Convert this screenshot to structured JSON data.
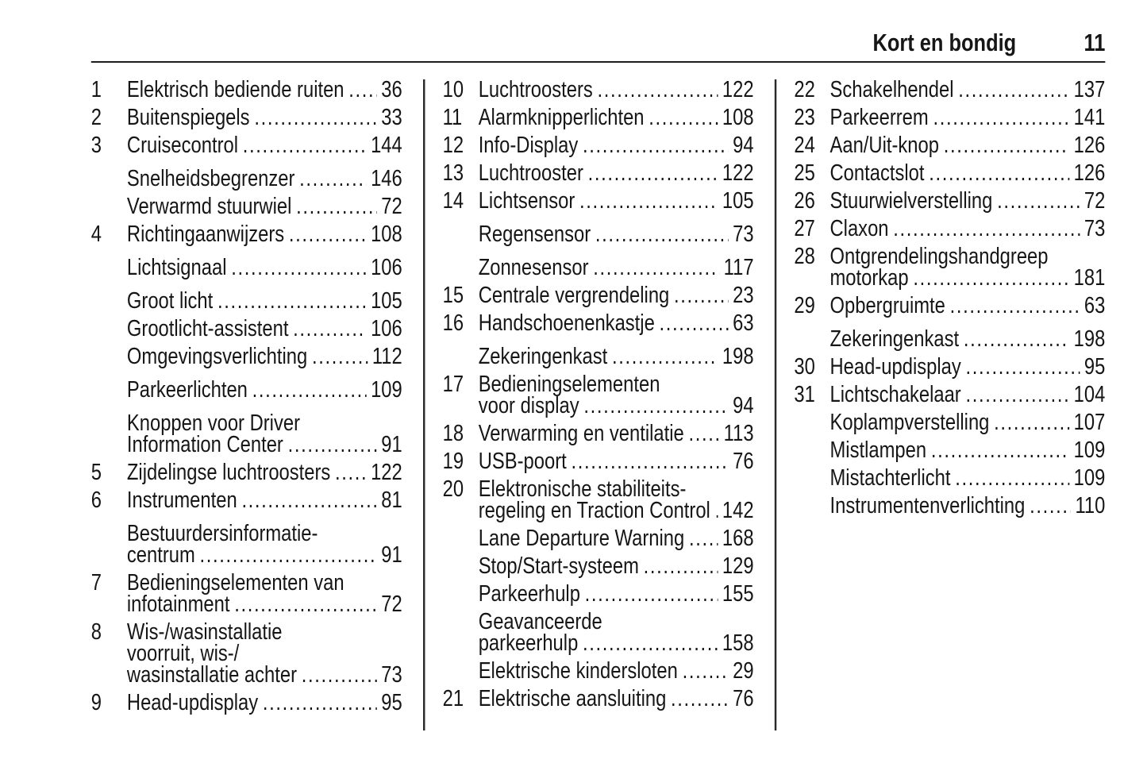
{
  "header": {
    "title": "Kort en bondig",
    "page_number": "11"
  },
  "style": {
    "ink": "#161616",
    "background": "#ffffff",
    "rule_color": "#1d1d1d",
    "divider_color": "#2a2a2a"
  },
  "meta": {
    "leader_char": "."
  },
  "columns": [
    {
      "entries": [
        {
          "num": "1",
          "lines": [
            "Elektrisch bediende ruiten"
          ],
          "page": "36",
          "gap": false
        },
        {
          "num": "2",
          "lines": [
            "Buitenspiegels"
          ],
          "page": "33",
          "gap": false
        },
        {
          "num": "3",
          "lines": [
            "Cruisecontrol"
          ],
          "page": "144",
          "gap": false
        },
        {
          "num": "",
          "lines": [
            "Snelheidsbegrenzer"
          ],
          "page": "146",
          "gap": true
        },
        {
          "num": "",
          "lines": [
            "Verwarmd stuurwiel"
          ],
          "page": "72",
          "gap": false
        },
        {
          "num": "4",
          "lines": [
            "Richtingaanwijzers"
          ],
          "page": "108",
          "gap": false
        },
        {
          "num": "",
          "lines": [
            "Lichtsignaal"
          ],
          "page": "106",
          "gap": true
        },
        {
          "num": "",
          "lines": [
            "Groot licht"
          ],
          "page": "105",
          "gap": true
        },
        {
          "num": "",
          "lines": [
            "Grootlicht-assistent"
          ],
          "page": "106",
          "gap": false
        },
        {
          "num": "",
          "lines": [
            "Omgevingsverlichting"
          ],
          "page": "112",
          "gap": false
        },
        {
          "num": "",
          "lines": [
            "Parkeerlichten"
          ],
          "page": "109",
          "gap": true
        },
        {
          "num": "",
          "lines": [
            "Knoppen voor Driver",
            "Information Center"
          ],
          "page": "91",
          "gap": true
        },
        {
          "num": "5",
          "lines": [
            "Zijdelingse luchtroosters"
          ],
          "page": "122",
          "gap": false
        },
        {
          "num": "6",
          "lines": [
            "Instrumenten"
          ],
          "page": "81",
          "gap": false
        },
        {
          "num": "",
          "lines": [
            "Bestuurdersinformatie-",
            "centrum"
          ],
          "page": "91",
          "gap": true
        },
        {
          "num": "7",
          "lines": [
            "Bedieningselementen van",
            "infotainment"
          ],
          "page": "72",
          "gap": false
        },
        {
          "num": "8",
          "lines": [
            "Wis-/wasinstallatie",
            "voorruit, wis-/",
            "wasinstallatie achter"
          ],
          "page": "73",
          "gap": false
        },
        {
          "num": "9",
          "lines": [
            "Head-updisplay"
          ],
          "page": "95",
          "gap": false
        }
      ]
    },
    {
      "entries": [
        {
          "num": "10",
          "lines": [
            "Luchtroosters"
          ],
          "page": "122",
          "gap": false
        },
        {
          "num": "11",
          "lines": [
            "Alarmknipperlichten"
          ],
          "page": "108",
          "gap": false
        },
        {
          "num": "12",
          "lines": [
            "Info-Display"
          ],
          "page": "94",
          "gap": false
        },
        {
          "num": "13",
          "lines": [
            "Luchtrooster"
          ],
          "page": "122",
          "gap": false
        },
        {
          "num": "14",
          "lines": [
            "Lichtsensor"
          ],
          "page": "105",
          "gap": false
        },
        {
          "num": "",
          "lines": [
            "Regensensor"
          ],
          "page": "73",
          "gap": true
        },
        {
          "num": "",
          "lines": [
            "Zonnesensor"
          ],
          "page": "117",
          "gap": true
        },
        {
          "num": "15",
          "lines": [
            "Centrale vergrendeling"
          ],
          "page": "23",
          "gap": false
        },
        {
          "num": "16",
          "lines": [
            "Handschoenenkastje"
          ],
          "page": "63",
          "gap": false
        },
        {
          "num": "",
          "lines": [
            "Zekeringenkast"
          ],
          "page": "198",
          "gap": true
        },
        {
          "num": "17",
          "lines": [
            "Bedieningselementen",
            "voor display"
          ],
          "page": "94",
          "gap": false
        },
        {
          "num": "18",
          "lines": [
            "Verwarming en ventilatie"
          ],
          "page": "113",
          "gap": false
        },
        {
          "num": "19",
          "lines": [
            "USB-poort"
          ],
          "page": "76",
          "gap": false
        },
        {
          "num": "20",
          "lines": [
            "Elektronische stabiliteits-",
            "regeling en Traction Control"
          ],
          "page": "142",
          "gap": false
        },
        {
          "num": "",
          "lines": [
            "Lane Departure Warning"
          ],
          "page": "168",
          "gap": false
        },
        {
          "num": "",
          "lines": [
            "Stop/Start-systeem"
          ],
          "page": "129",
          "gap": false
        },
        {
          "num": "",
          "lines": [
            "Parkeerhulp"
          ],
          "page": "155",
          "gap": false
        },
        {
          "num": "",
          "lines": [
            "Geavanceerde",
            "parkeerhulp"
          ],
          "page": "158",
          "gap": false
        },
        {
          "num": "",
          "lines": [
            "Elektrische kindersloten"
          ],
          "page": "29",
          "gap": false
        },
        {
          "num": "21",
          "lines": [
            "Elektrische aansluiting"
          ],
          "page": "76",
          "gap": false
        }
      ]
    },
    {
      "entries": [
        {
          "num": "22",
          "lines": [
            "Schakelhendel"
          ],
          "page": "137",
          "gap": false
        },
        {
          "num": "23",
          "lines": [
            "Parkeerrem"
          ],
          "page": "141",
          "gap": false
        },
        {
          "num": "24",
          "lines": [
            "Aan/Uit-knop"
          ],
          "page": "126",
          "gap": false
        },
        {
          "num": "25",
          "lines": [
            "Contactslot"
          ],
          "page": "126",
          "gap": false
        },
        {
          "num": "26",
          "lines": [
            "Stuurwielverstelling"
          ],
          "page": "72",
          "gap": false
        },
        {
          "num": "27",
          "lines": [
            "Claxon"
          ],
          "page": "73",
          "gap": false
        },
        {
          "num": "28",
          "lines": [
            "Ontgrendelingshandgreep",
            "motorkap"
          ],
          "page": "181",
          "gap": false
        },
        {
          "num": "29",
          "lines": [
            "Opbergruimte"
          ],
          "page": "63",
          "gap": false
        },
        {
          "num": "",
          "lines": [
            "Zekeringenkast"
          ],
          "page": "198",
          "gap": true
        },
        {
          "num": "30",
          "lines": [
            "Head-updisplay"
          ],
          "page": "95",
          "gap": false
        },
        {
          "num": "31",
          "lines": [
            "Lichtschakelaar"
          ],
          "page": "104",
          "gap": false
        },
        {
          "num": "",
          "lines": [
            "Koplampverstelling"
          ],
          "page": "107",
          "gap": false
        },
        {
          "num": "",
          "lines": [
            "Mistlampen"
          ],
          "page": "109",
          "gap": false
        },
        {
          "num": "",
          "lines": [
            "Mistachterlicht"
          ],
          "page": "109",
          "gap": false
        },
        {
          "num": "",
          "lines": [
            "Instrumentenverlichting"
          ],
          "page": "110",
          "gap": false
        }
      ]
    }
  ]
}
